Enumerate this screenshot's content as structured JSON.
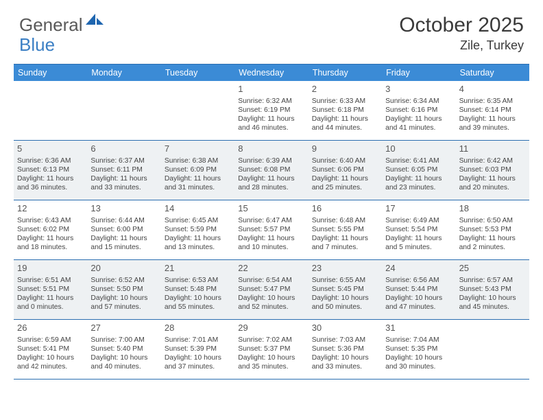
{
  "logo": {
    "general": "General",
    "blue": "Blue"
  },
  "title": {
    "month": "October 2025",
    "location": "Zile, Turkey"
  },
  "dayNames": [
    "Sunday",
    "Monday",
    "Tuesday",
    "Wednesday",
    "Thursday",
    "Friday",
    "Saturday"
  ],
  "colors": {
    "headerBg": "#3b8bd6",
    "rowBorder": "#2a6db0",
    "shaded": "#eef1f3",
    "text": "#444444",
    "logoGray": "#5a5a5a",
    "logoBlue": "#3b7fc4"
  },
  "weeks": [
    {
      "shaded": false,
      "days": [
        {
          "num": "",
          "sunrise": "",
          "sunset": "",
          "daylight": ""
        },
        {
          "num": "",
          "sunrise": "",
          "sunset": "",
          "daylight": ""
        },
        {
          "num": "",
          "sunrise": "",
          "sunset": "",
          "daylight": ""
        },
        {
          "num": "1",
          "sunrise": "Sunrise: 6:32 AM",
          "sunset": "Sunset: 6:19 PM",
          "daylight": "Daylight: 11 hours and 46 minutes."
        },
        {
          "num": "2",
          "sunrise": "Sunrise: 6:33 AM",
          "sunset": "Sunset: 6:18 PM",
          "daylight": "Daylight: 11 hours and 44 minutes."
        },
        {
          "num": "3",
          "sunrise": "Sunrise: 6:34 AM",
          "sunset": "Sunset: 6:16 PM",
          "daylight": "Daylight: 11 hours and 41 minutes."
        },
        {
          "num": "4",
          "sunrise": "Sunrise: 6:35 AM",
          "sunset": "Sunset: 6:14 PM",
          "daylight": "Daylight: 11 hours and 39 minutes."
        }
      ]
    },
    {
      "shaded": true,
      "days": [
        {
          "num": "5",
          "sunrise": "Sunrise: 6:36 AM",
          "sunset": "Sunset: 6:13 PM",
          "daylight": "Daylight: 11 hours and 36 minutes."
        },
        {
          "num": "6",
          "sunrise": "Sunrise: 6:37 AM",
          "sunset": "Sunset: 6:11 PM",
          "daylight": "Daylight: 11 hours and 33 minutes."
        },
        {
          "num": "7",
          "sunrise": "Sunrise: 6:38 AM",
          "sunset": "Sunset: 6:09 PM",
          "daylight": "Daylight: 11 hours and 31 minutes."
        },
        {
          "num": "8",
          "sunrise": "Sunrise: 6:39 AM",
          "sunset": "Sunset: 6:08 PM",
          "daylight": "Daylight: 11 hours and 28 minutes."
        },
        {
          "num": "9",
          "sunrise": "Sunrise: 6:40 AM",
          "sunset": "Sunset: 6:06 PM",
          "daylight": "Daylight: 11 hours and 25 minutes."
        },
        {
          "num": "10",
          "sunrise": "Sunrise: 6:41 AM",
          "sunset": "Sunset: 6:05 PM",
          "daylight": "Daylight: 11 hours and 23 minutes."
        },
        {
          "num": "11",
          "sunrise": "Sunrise: 6:42 AM",
          "sunset": "Sunset: 6:03 PM",
          "daylight": "Daylight: 11 hours and 20 minutes."
        }
      ]
    },
    {
      "shaded": false,
      "days": [
        {
          "num": "12",
          "sunrise": "Sunrise: 6:43 AM",
          "sunset": "Sunset: 6:02 PM",
          "daylight": "Daylight: 11 hours and 18 minutes."
        },
        {
          "num": "13",
          "sunrise": "Sunrise: 6:44 AM",
          "sunset": "Sunset: 6:00 PM",
          "daylight": "Daylight: 11 hours and 15 minutes."
        },
        {
          "num": "14",
          "sunrise": "Sunrise: 6:45 AM",
          "sunset": "Sunset: 5:59 PM",
          "daylight": "Daylight: 11 hours and 13 minutes."
        },
        {
          "num": "15",
          "sunrise": "Sunrise: 6:47 AM",
          "sunset": "Sunset: 5:57 PM",
          "daylight": "Daylight: 11 hours and 10 minutes."
        },
        {
          "num": "16",
          "sunrise": "Sunrise: 6:48 AM",
          "sunset": "Sunset: 5:55 PM",
          "daylight": "Daylight: 11 hours and 7 minutes."
        },
        {
          "num": "17",
          "sunrise": "Sunrise: 6:49 AM",
          "sunset": "Sunset: 5:54 PM",
          "daylight": "Daylight: 11 hours and 5 minutes."
        },
        {
          "num": "18",
          "sunrise": "Sunrise: 6:50 AM",
          "sunset": "Sunset: 5:53 PM",
          "daylight": "Daylight: 11 hours and 2 minutes."
        }
      ]
    },
    {
      "shaded": true,
      "days": [
        {
          "num": "19",
          "sunrise": "Sunrise: 6:51 AM",
          "sunset": "Sunset: 5:51 PM",
          "daylight": "Daylight: 11 hours and 0 minutes."
        },
        {
          "num": "20",
          "sunrise": "Sunrise: 6:52 AM",
          "sunset": "Sunset: 5:50 PM",
          "daylight": "Daylight: 10 hours and 57 minutes."
        },
        {
          "num": "21",
          "sunrise": "Sunrise: 6:53 AM",
          "sunset": "Sunset: 5:48 PM",
          "daylight": "Daylight: 10 hours and 55 minutes."
        },
        {
          "num": "22",
          "sunrise": "Sunrise: 6:54 AM",
          "sunset": "Sunset: 5:47 PM",
          "daylight": "Daylight: 10 hours and 52 minutes."
        },
        {
          "num": "23",
          "sunrise": "Sunrise: 6:55 AM",
          "sunset": "Sunset: 5:45 PM",
          "daylight": "Daylight: 10 hours and 50 minutes."
        },
        {
          "num": "24",
          "sunrise": "Sunrise: 6:56 AM",
          "sunset": "Sunset: 5:44 PM",
          "daylight": "Daylight: 10 hours and 47 minutes."
        },
        {
          "num": "25",
          "sunrise": "Sunrise: 6:57 AM",
          "sunset": "Sunset: 5:43 PM",
          "daylight": "Daylight: 10 hours and 45 minutes."
        }
      ]
    },
    {
      "shaded": false,
      "days": [
        {
          "num": "26",
          "sunrise": "Sunrise: 6:59 AM",
          "sunset": "Sunset: 5:41 PM",
          "daylight": "Daylight: 10 hours and 42 minutes."
        },
        {
          "num": "27",
          "sunrise": "Sunrise: 7:00 AM",
          "sunset": "Sunset: 5:40 PM",
          "daylight": "Daylight: 10 hours and 40 minutes."
        },
        {
          "num": "28",
          "sunrise": "Sunrise: 7:01 AM",
          "sunset": "Sunset: 5:39 PM",
          "daylight": "Daylight: 10 hours and 37 minutes."
        },
        {
          "num": "29",
          "sunrise": "Sunrise: 7:02 AM",
          "sunset": "Sunset: 5:37 PM",
          "daylight": "Daylight: 10 hours and 35 minutes."
        },
        {
          "num": "30",
          "sunrise": "Sunrise: 7:03 AM",
          "sunset": "Sunset: 5:36 PM",
          "daylight": "Daylight: 10 hours and 33 minutes."
        },
        {
          "num": "31",
          "sunrise": "Sunrise: 7:04 AM",
          "sunset": "Sunset: 5:35 PM",
          "daylight": "Daylight: 10 hours and 30 minutes."
        },
        {
          "num": "",
          "sunrise": "",
          "sunset": "",
          "daylight": ""
        }
      ]
    }
  ]
}
